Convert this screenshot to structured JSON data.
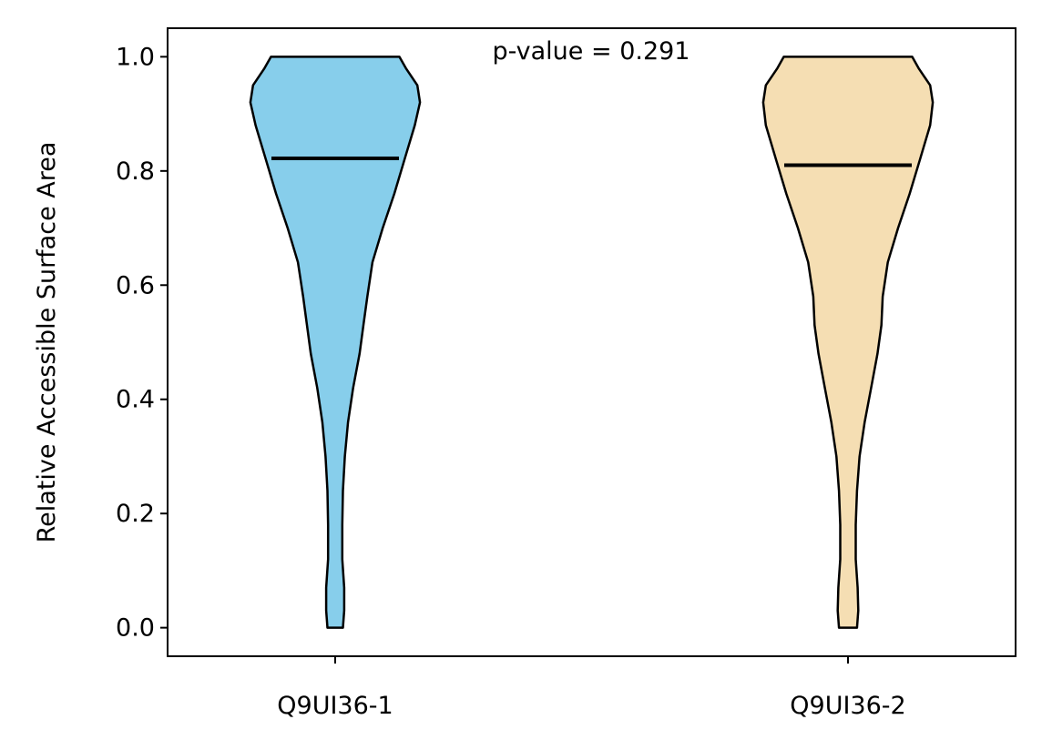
{
  "chart_data": {
    "type": "violin",
    "title": "",
    "xlabel": "",
    "ylabel": "Relative Accessible Surface Area",
    "ylim": [
      -0.05,
      1.05
    ],
    "yticks": [
      "0.0",
      "0.2",
      "0.4",
      "0.6",
      "0.8",
      "1.0"
    ],
    "annotation": "p-value = 0.291",
    "categories": [
      "Q9UI36-1",
      "Q9UI36-2"
    ],
    "series": [
      {
        "category": "Q9UI36-1",
        "color": "#87ceeb",
        "median": 0.822,
        "range": [
          0.0,
          1.0
        ],
        "density": [
          [
            0.0,
            0.06
          ],
          [
            0.03,
            0.07
          ],
          [
            0.07,
            0.07
          ],
          [
            0.12,
            0.055
          ],
          [
            0.18,
            0.055
          ],
          [
            0.24,
            0.06
          ],
          [
            0.3,
            0.075
          ],
          [
            0.36,
            0.1
          ],
          [
            0.42,
            0.14
          ],
          [
            0.48,
            0.19
          ],
          [
            0.53,
            0.22
          ],
          [
            0.58,
            0.25
          ],
          [
            0.64,
            0.29
          ],
          [
            0.7,
            0.37
          ],
          [
            0.76,
            0.46
          ],
          [
            0.82,
            0.54
          ],
          [
            0.88,
            0.62
          ],
          [
            0.92,
            0.66
          ],
          [
            0.95,
            0.64
          ],
          [
            0.98,
            0.55
          ],
          [
            1.0,
            0.5
          ]
        ]
      },
      {
        "category": "Q9UI36-2",
        "color": "#f5deb3",
        "median": 0.81,
        "range": [
          0.0,
          1.0
        ],
        "density": [
          [
            0.0,
            0.07
          ],
          [
            0.03,
            0.08
          ],
          [
            0.07,
            0.075
          ],
          [
            0.12,
            0.06
          ],
          [
            0.18,
            0.06
          ],
          [
            0.24,
            0.07
          ],
          [
            0.3,
            0.09
          ],
          [
            0.36,
            0.13
          ],
          [
            0.42,
            0.18
          ],
          [
            0.48,
            0.23
          ],
          [
            0.53,
            0.26
          ],
          [
            0.58,
            0.27
          ],
          [
            0.64,
            0.31
          ],
          [
            0.7,
            0.39
          ],
          [
            0.76,
            0.48
          ],
          [
            0.82,
            0.56
          ],
          [
            0.88,
            0.64
          ],
          [
            0.92,
            0.66
          ],
          [
            0.95,
            0.64
          ],
          [
            0.98,
            0.55
          ],
          [
            1.0,
            0.5
          ]
        ]
      }
    ]
  }
}
